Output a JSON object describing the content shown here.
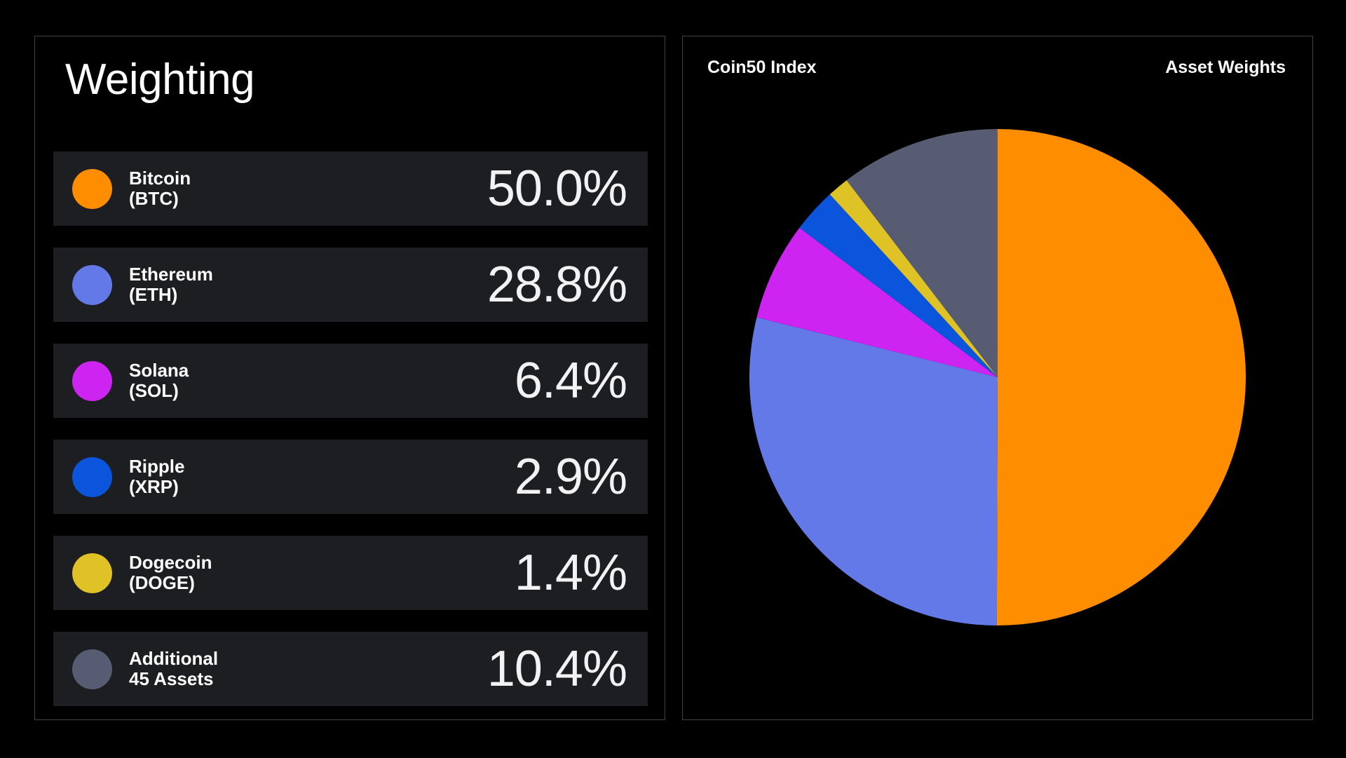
{
  "left_panel": {
    "title": "Weighting",
    "rows": [
      {
        "name": "Bitcoin",
        "sub": "(BTC)",
        "percent": "50.0%",
        "color": "#FF8D00"
      },
      {
        "name": "Ethereum",
        "sub": "(ETH)",
        "percent": "28.8%",
        "color": "#6379E8"
      },
      {
        "name": "Solana",
        "sub": "(SOL)",
        "percent": "6.4%",
        "color": "#CE24F2"
      },
      {
        "name": "Ripple",
        "sub": "(XRP)",
        "percent": "2.9%",
        "color": "#0B54DC"
      },
      {
        "name": "Dogecoin",
        "sub": "(DOGE)",
        "percent": "1.4%",
        "color": "#DFC226"
      },
      {
        "name": "Additional",
        "sub": "45 Assets",
        "percent": "10.4%",
        "color": "#585C72"
      }
    ]
  },
  "right_panel": {
    "title_left": "Coin50 Index",
    "title_right": "Asset Weights"
  },
  "chart_data": {
    "type": "pie",
    "title": "Coin50 Index — Asset Weights",
    "labels": [
      "Bitcoin (BTC)",
      "Ethereum (ETH)",
      "Solana (SOL)",
      "Ripple (XRP)",
      "Dogecoin (DOGE)",
      "Additional 45 Assets"
    ],
    "values": [
      50.0,
      28.8,
      6.4,
      2.9,
      1.4,
      10.4
    ],
    "colors": [
      "#FF8D00",
      "#6379E8",
      "#CE24F2",
      "#0B54DC",
      "#DFC226",
      "#585C72"
    ],
    "start_angle_deg": 0,
    "direction": "clockwise",
    "legend_position": "none",
    "background": "#000000"
  }
}
